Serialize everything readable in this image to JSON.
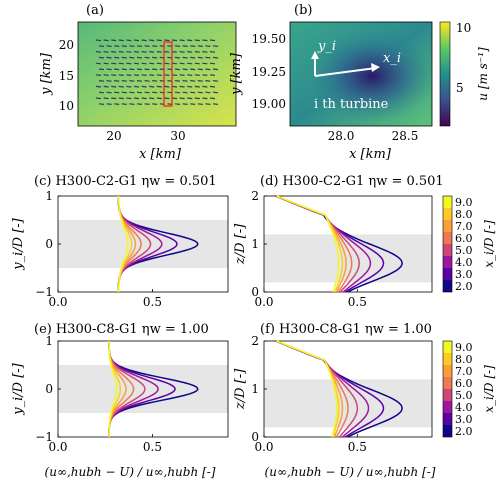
{
  "panel_a": {
    "tag": "(a)",
    "xlabel": "x [km]",
    "ylabel": "y [km]",
    "xticks": [
      "20",
      "30"
    ],
    "yticks": [
      "10",
      "15",
      "20"
    ],
    "colors": {
      "field_low": "#7ec57a",
      "field_high": "#e6e74a",
      "array": "#2b3d6b",
      "box": "#ff2a2a"
    }
  },
  "panel_b": {
    "tag": "(b)",
    "xlabel": "x [km]",
    "ylabel": "y [km]",
    "xticks": [
      "28.0",
      "28.5"
    ],
    "yticks": [
      "19.00",
      "19.25",
      "19.50"
    ],
    "axis_x_label": "x_i",
    "axis_y_label": "y_i",
    "turbine_label": "i th turbine",
    "cbar_ticks": [
      "5",
      "10"
    ],
    "cbar_label": "u [m s⁻¹]"
  },
  "panel_c": {
    "tag": "(c)",
    "title": "H300-C2-G1  ηw = 0.501",
    "ylabel": "y_i/D [-]",
    "yticks": [
      "−1",
      "0",
      "1"
    ],
    "xticks": [
      "0.0",
      "0.5"
    ]
  },
  "panel_d": {
    "tag": "(d)",
    "title": "H300-C2-G1  ηw = 0.501",
    "ylabel": "z/D [-]",
    "yticks": [
      "0",
      "1",
      "2"
    ],
    "xticks": [
      "0.0",
      "0.5"
    ]
  },
  "panel_e": {
    "tag": "(e)",
    "title": "H300-C8-G1  ηw = 1.00",
    "ylabel": "y_i/D [-]",
    "yticks": [
      "−1",
      "0",
      "1"
    ],
    "xticks": [
      "0.0",
      "0.5"
    ]
  },
  "panel_f": {
    "tag": "(f)",
    "title": "H300-C8-G1  ηw = 1.00",
    "ylabel": "z/D [-]",
    "yticks": [
      "0",
      "1",
      "2"
    ],
    "xticks": [
      "0.0",
      "0.5"
    ]
  },
  "bottom_xlabel": "(u∞,hubh − U) / u∞,hubh  [-]",
  "cbar_wake": {
    "label": "x_i/D [-]",
    "ticks": [
      "2.0",
      "3.0",
      "4.0",
      "5.0",
      "6.0",
      "7.0",
      "8.0",
      "9.0"
    ]
  },
  "chart_data": [
    {
      "type": "line",
      "panel": "c",
      "title": "H300-C2-G1 ηw = 0.501",
      "xlabel": "(u∞,hubh − U)/u∞,hubh [-]",
      "ylabel": "y_i/D [-]",
      "xlim": [
        0,
        0.9
      ],
      "ylim": [
        -1,
        1
      ],
      "series": [
        {
          "name": "2.0",
          "peak": 0.74,
          "baseline": 0.32,
          "width": 0.42,
          "color": "#0d0887"
        },
        {
          "name": "3.0",
          "peak": 0.63,
          "baseline": 0.32,
          "width": 0.45,
          "color": "#5c01a6"
        },
        {
          "name": "4.0",
          "peak": 0.55,
          "baseline": 0.32,
          "width": 0.48,
          "color": "#9c179e"
        },
        {
          "name": "5.0",
          "peak": 0.49,
          "baseline": 0.32,
          "width": 0.5,
          "color": "#cc4778"
        },
        {
          "name": "6.0",
          "peak": 0.44,
          "baseline": 0.32,
          "width": 0.52,
          "color": "#ed7953"
        },
        {
          "name": "7.0",
          "peak": 0.41,
          "baseline": 0.32,
          "width": 0.55,
          "color": "#fb9f3a"
        },
        {
          "name": "8.0",
          "peak": 0.39,
          "baseline": 0.32,
          "width": 0.57,
          "color": "#fdca26"
        },
        {
          "name": "9.0",
          "peak": 0.37,
          "baseline": 0.32,
          "width": 0.6,
          "color": "#f0f921"
        }
      ]
    },
    {
      "type": "line",
      "panel": "d",
      "title": "H300-C2-G1 ηw = 0.501",
      "ylabel": "z/D [-]",
      "xlim": [
        0,
        0.9
      ],
      "ylim": [
        0,
        2
      ],
      "series": [
        {
          "name": "2.0",
          "peak": 0.74,
          "color": "#0d0887"
        },
        {
          "name": "3.0",
          "peak": 0.64,
          "color": "#5c01a6"
        },
        {
          "name": "4.0",
          "peak": 0.57,
          "color": "#9c179e"
        },
        {
          "name": "5.0",
          "peak": 0.51,
          "color": "#cc4778"
        },
        {
          "name": "6.0",
          "peak": 0.47,
          "color": "#ed7953"
        },
        {
          "name": "7.0",
          "peak": 0.44,
          "color": "#fb9f3a"
        },
        {
          "name": "8.0",
          "peak": 0.42,
          "color": "#fdca26"
        },
        {
          "name": "9.0",
          "peak": 0.4,
          "color": "#f0f921"
        }
      ]
    },
    {
      "type": "line",
      "panel": "e",
      "title": "H300-C8-G1 ηw = 1.00",
      "ylabel": "y_i/D [-]",
      "xlim": [
        0,
        0.9
      ],
      "ylim": [
        -1,
        1
      ],
      "series": [
        {
          "name": "2.0",
          "peak": 0.74,
          "baseline": 0.27,
          "width": 0.42,
          "color": "#0d0887"
        },
        {
          "name": "3.0",
          "peak": 0.62,
          "baseline": 0.27,
          "width": 0.44,
          "color": "#5c01a6"
        },
        {
          "name": "4.0",
          "peak": 0.53,
          "baseline": 0.27,
          "width": 0.46,
          "color": "#9c179e"
        },
        {
          "name": "5.0",
          "peak": 0.46,
          "baseline": 0.27,
          "width": 0.48,
          "color": "#cc4778"
        },
        {
          "name": "6.0",
          "peak": 0.4,
          "baseline": 0.27,
          "width": 0.5,
          "color": "#ed7953"
        },
        {
          "name": "7.0",
          "peak": 0.36,
          "baseline": 0.27,
          "width": 0.52,
          "color": "#fb9f3a"
        },
        {
          "name": "8.0",
          "peak": 0.33,
          "baseline": 0.27,
          "width": 0.54,
          "color": "#fdca26"
        },
        {
          "name": "9.0",
          "peak": 0.31,
          "baseline": 0.27,
          "width": 0.56,
          "color": "#f0f921"
        }
      ]
    },
    {
      "type": "line",
      "panel": "f",
      "title": "H300-C8-G1 ηw = 1.00",
      "ylabel": "z/D [-]",
      "xlim": [
        0,
        0.9
      ],
      "ylim": [
        0,
        2
      ],
      "series": [
        {
          "name": "2.0",
          "peak": 0.74,
          "color": "#0d0887"
        },
        {
          "name": "3.0",
          "peak": 0.64,
          "color": "#5c01a6"
        },
        {
          "name": "4.0",
          "peak": 0.56,
          "color": "#9c179e"
        },
        {
          "name": "5.0",
          "peak": 0.5,
          "color": "#cc4778"
        },
        {
          "name": "6.0",
          "peak": 0.45,
          "color": "#ed7953"
        },
        {
          "name": "7.0",
          "peak": 0.42,
          "color": "#fb9f3a"
        },
        {
          "name": "8.0",
          "peak": 0.4,
          "color": "#fdca26"
        },
        {
          "name": "9.0",
          "peak": 0.39,
          "color": "#f0f921"
        }
      ]
    }
  ]
}
